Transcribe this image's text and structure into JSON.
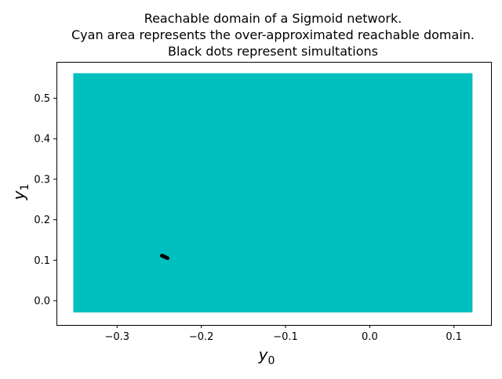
{
  "chart_data": {
    "type": "scatter",
    "title_lines": [
      "Reachable domain of a Sigmoid network.",
      "Cyan area represents the over-approximated reachable domain.",
      "Black dots represent simultations"
    ],
    "xlabel": {
      "base": "y",
      "sub": "0"
    },
    "ylabel": {
      "base": "y",
      "sub": "1"
    },
    "xlim": [
      -0.372,
      0.144
    ],
    "ylim": [
      -0.06,
      0.59
    ],
    "x_ticks": [
      {
        "value": -0.3,
        "label": "−0.3"
      },
      {
        "value": -0.2,
        "label": "−0.2"
      },
      {
        "value": -0.1,
        "label": "−0.1"
      },
      {
        "value": 0.0,
        "label": "0.0"
      },
      {
        "value": 0.1,
        "label": "0.1"
      }
    ],
    "y_ticks": [
      {
        "value": 0.0,
        "label": "0.0"
      },
      {
        "value": 0.1,
        "label": "0.1"
      },
      {
        "value": 0.2,
        "label": "0.2"
      },
      {
        "value": 0.3,
        "label": "0.3"
      },
      {
        "value": 0.4,
        "label": "0.4"
      },
      {
        "value": 0.5,
        "label": "0.5"
      }
    ],
    "grid": false,
    "reachable_domain": {
      "x0": -0.352,
      "x1": 0.122,
      "y0": -0.029,
      "y1": 0.562,
      "color": "#00bfbf"
    },
    "simulations": {
      "color": "#000000",
      "points": [
        [
          -0.2465,
          0.1115
        ],
        [
          -0.2458,
          0.111
        ],
        [
          -0.2452,
          0.1104
        ],
        [
          -0.2446,
          0.1098
        ],
        [
          -0.244,
          0.1092
        ],
        [
          -0.2434,
          0.1086
        ],
        [
          -0.2428,
          0.108
        ],
        [
          -0.2422,
          0.1074
        ],
        [
          -0.2416,
          0.1068
        ],
        [
          -0.241,
          0.1062
        ],
        [
          -0.2404,
          0.1056
        ],
        [
          -0.2399,
          0.1051
        ],
        [
          -0.246,
          0.1104
        ],
        [
          -0.245,
          0.1096
        ],
        [
          -0.244,
          0.1086
        ],
        [
          -0.243,
          0.1076
        ],
        [
          -0.242,
          0.1066
        ],
        [
          -0.2412,
          0.1057
        ],
        [
          -0.247,
          0.111
        ],
        [
          -0.2455,
          0.11
        ],
        [
          -0.2445,
          0.109
        ],
        [
          -0.2435,
          0.1082
        ],
        [
          -0.2425,
          0.1071
        ],
        [
          -0.2405,
          0.105
        ]
      ]
    }
  }
}
